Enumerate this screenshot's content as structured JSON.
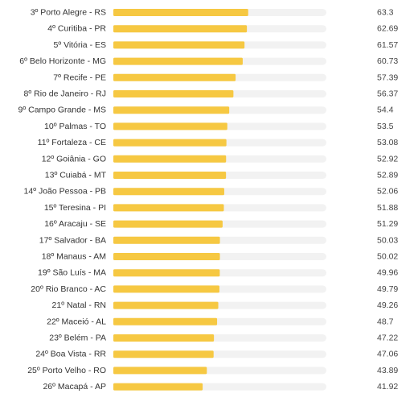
{
  "chart_data": {
    "type": "bar",
    "orientation": "horizontal",
    "categories": [
      "3º Porto Alegre - RS",
      "4º Curitiba - PR",
      "5º Vitória - ES",
      "6º Belo Horizonte - MG",
      "7º Recife - PE",
      "8º Rio de Janeiro - RJ",
      "9º Campo Grande - MS",
      "10º Palmas - TO",
      "11º Fortaleza - CE",
      "12º Goiânia - GO",
      "13º Cuiabá - MT",
      "14º João Pessoa - PB",
      "15º Teresina - PI",
      "16º Aracaju - SE",
      "17º Salvador - BA",
      "18º Manaus - AM",
      "19º São Luís - MA",
      "20º Rio Branco - AC",
      "21º Natal - RN",
      "22º Maceió - AL",
      "23º Belém - PA",
      "24º Boa Vista - RR",
      "25º Porto Velho - RO",
      "26º Macapá - AP"
    ],
    "value_labels": [
      "63.3",
      "62.69",
      "61.57",
      "60.73",
      "57.39",
      "56.37",
      "54.4",
      "53.5",
      "53.08",
      "52.92",
      "52.89",
      "52.06",
      "51.88",
      "51.29",
      "50.03",
      "50.02",
      "49.96",
      "49.79",
      "49.26",
      "48.7",
      "47.22",
      "47.06",
      "43.89",
      "41.92"
    ],
    "values": [
      63.3,
      62.69,
      61.57,
      60.73,
      57.39,
      56.37,
      54.4,
      53.5,
      53.08,
      52.92,
      52.89,
      52.06,
      51.88,
      51.29,
      50.03,
      50.02,
      49.96,
      49.79,
      49.26,
      48.7,
      47.22,
      47.06,
      43.89,
      41.92
    ],
    "xlim": [
      0,
      100
    ],
    "grid": false,
    "legend": "none",
    "colors": {
      "bar": "#f6c842",
      "track": "#f2f2f2",
      "label": "#333333",
      "value": "#444444"
    }
  }
}
